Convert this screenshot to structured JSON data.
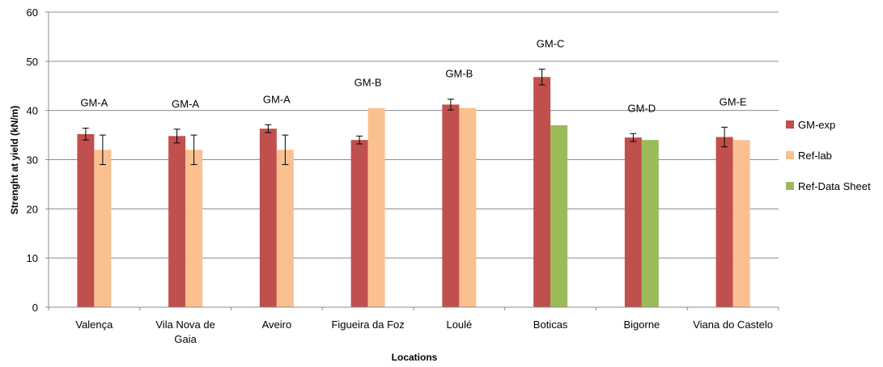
{
  "chart_data": {
    "type": "bar",
    "xlabel": "Locations",
    "ylabel": "Strenght at yield (kN/m)",
    "ylim": [
      0,
      60
    ],
    "yticks": [
      0,
      10,
      20,
      30,
      40,
      50,
      60
    ],
    "grid": true,
    "legend_position": "right",
    "categories": [
      [
        "Valença"
      ],
      [
        "Vila Nova de",
        "Gaia"
      ],
      [
        "Aveiro"
      ],
      [
        "Figueira da Foz"
      ],
      [
        "Loulé"
      ],
      [
        "Boticas"
      ],
      [
        "Bigorne"
      ],
      [
        "Viana do Castelo"
      ]
    ],
    "group_labels": [
      "GM-A",
      "GM-A",
      "GM-A",
      "GM-B",
      "GM-B",
      "GM-C",
      "GM-D",
      "GM-E"
    ],
    "series": [
      {
        "name": "GM-exp",
        "color": "#C0504D",
        "values": [
          35.2,
          34.8,
          36.3,
          34.0,
          41.2,
          46.8,
          34.5,
          34.6
        ],
        "errors": [
          1.2,
          1.4,
          0.8,
          0.8,
          1.1,
          1.6,
          0.8,
          2.0
        ]
      },
      {
        "name": "Ref-lab",
        "color": "#FAC090",
        "values": [
          32.0,
          32.0,
          32.0,
          40.5,
          40.5,
          null,
          null,
          34.0
        ],
        "errors": [
          3.0,
          3.0,
          3.0,
          null,
          null,
          null,
          null,
          null
        ]
      },
      {
        "name": "Ref-Data Sheet",
        "color": "#9BBB59",
        "values": [
          null,
          null,
          null,
          null,
          null,
          37.0,
          34.0,
          null
        ],
        "errors": [
          null,
          null,
          null,
          null,
          null,
          null,
          null,
          null
        ]
      }
    ]
  }
}
